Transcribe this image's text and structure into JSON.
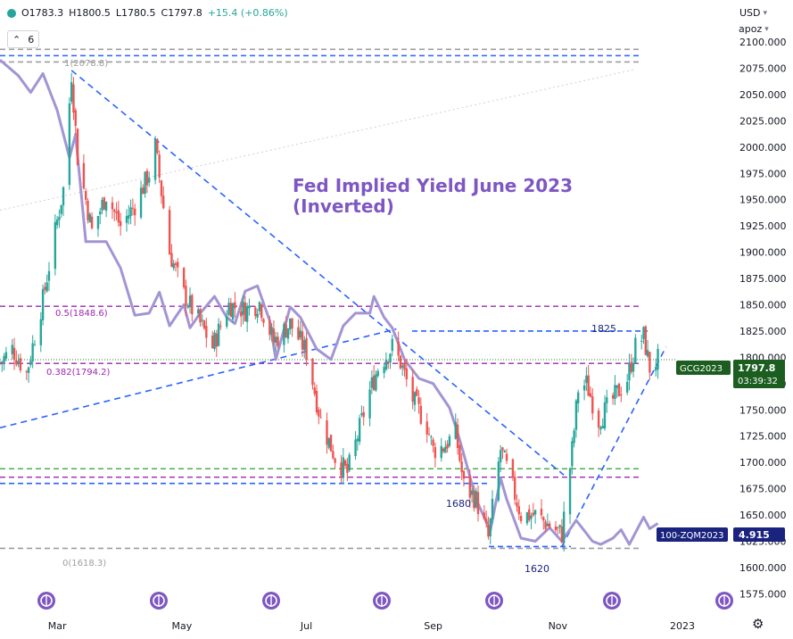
{
  "header": {
    "open": "O1783.3",
    "high": "H1800.5",
    "low": "L1780.5",
    "close": "C1797.8",
    "change": "+15.4 (+0.86%)",
    "layers_count": "6",
    "currency": "USD",
    "scale_mode": "apoz"
  },
  "annotation": {
    "title_line1": "Fed Implied Yield June 2023",
    "title_line2": "(Inverted)"
  },
  "fib_labels": {
    "level_1": "1(2078.8)",
    "level_05": "0.5(1848.6)",
    "level_0382": "0.382(1794.2)",
    "level_0": "0(1618.3)"
  },
  "level_labels": {
    "l1825": "1825",
    "l1680": "1680",
    "l1620": "1620"
  },
  "badges": {
    "gold_symbol": "GCG2023",
    "gold_price": "1797.8",
    "gold_countdown": "03:39:32",
    "fed_symbol": "100-ZQM2023",
    "fed_value": "4.915"
  },
  "colors": {
    "up": "#26a69a",
    "down": "#ef5350",
    "ma_purple": "#a394d4",
    "trend_blue": "#2962ff",
    "fib_purple": "#9c27b0",
    "green_line": "#4caf50",
    "gray_dash": "#9e9e9e",
    "title_purple": "#7e57c2",
    "badge_green": "#1b5e20",
    "badge_navy": "#1a237e",
    "event_icon": "#7e57c2"
  },
  "event_icons": [
    "dollar-event-icon",
    "dollar-event-icon",
    "dollar-event-icon",
    "dollar-event-icon",
    "dollar-event-icon",
    "dollar-event-icon",
    "dollar-event-icon"
  ],
  "chart_data": {
    "type": "candlestick",
    "title": "",
    "symbol": "GCG2023",
    "ylim": [
      1566,
      2106
    ],
    "y_ticks": [
      1575,
      1600,
      1625,
      1650,
      1675,
      1700,
      1725,
      1750,
      1775,
      1800,
      1825,
      1850,
      1875,
      1900,
      1925,
      1950,
      1975,
      2000,
      2025,
      2050,
      2075,
      2100
    ],
    "x_ticks": [
      "Mar",
      "May",
      "Jul",
      "Sep",
      "Nov",
      "2023"
    ],
    "x_tick_dates": [
      "2022-03-01",
      "2022-05-01",
      "2022-07-01",
      "2022-09-01",
      "2022-11-01",
      "2023-01-01"
    ],
    "x_range": [
      "2022-02-01",
      "2023-01-25"
    ],
    "price_path": [
      [
        "2022-02-01",
        1795
      ],
      [
        "2022-02-07",
        1808
      ],
      [
        "2022-02-14",
        1785
      ],
      [
        "2022-02-22",
        1855
      ],
      [
        "2022-03-01",
        1930
      ],
      [
        "2022-03-04",
        1960
      ],
      [
        "2022-03-08",
        2070
      ],
      [
        "2022-03-11",
        1990
      ],
      [
        "2022-03-18",
        1920
      ],
      [
        "2022-03-25",
        1955
      ],
      [
        "2022-04-01",
        1925
      ],
      [
        "2022-04-08",
        1945
      ],
      [
        "2022-04-15",
        1975
      ],
      [
        "2022-04-18",
        2000
      ],
      [
        "2022-04-25",
        1900
      ],
      [
        "2022-05-02",
        1860
      ],
      [
        "2022-05-12",
        1825
      ],
      [
        "2022-05-16",
        1810
      ],
      [
        "2022-05-24",
        1850
      ],
      [
        "2022-06-01",
        1845
      ],
      [
        "2022-06-08",
        1852
      ],
      [
        "2022-06-15",
        1815
      ],
      [
        "2022-06-23",
        1832
      ],
      [
        "2022-07-01",
        1805
      ],
      [
        "2022-07-08",
        1740
      ],
      [
        "2022-07-15",
        1705
      ],
      [
        "2022-07-21",
        1690
      ],
      [
        "2022-07-25",
        1718
      ],
      [
        "2022-08-01",
        1768
      ],
      [
        "2022-08-05",
        1790
      ],
      [
        "2022-08-12",
        1810
      ],
      [
        "2022-08-16",
        1795
      ],
      [
        "2022-08-22",
        1760
      ],
      [
        "2022-08-29",
        1735
      ],
      [
        "2022-09-01",
        1712
      ],
      [
        "2022-09-06",
        1715
      ],
      [
        "2022-09-12",
        1728
      ],
      [
        "2022-09-16",
        1678
      ],
      [
        "2022-09-22",
        1665
      ],
      [
        "2022-09-28",
        1628
      ],
      [
        "2022-10-04",
        1712
      ],
      [
        "2022-10-07",
        1695
      ],
      [
        "2022-10-14",
        1650
      ],
      [
        "2022-10-21",
        1650
      ],
      [
        "2022-10-28",
        1640
      ],
      [
        "2022-11-03",
        1632
      ],
      [
        "2022-11-08",
        1712
      ],
      [
        "2022-11-11",
        1770
      ],
      [
        "2022-11-15",
        1775
      ],
      [
        "2022-11-21",
        1740
      ],
      [
        "2022-11-28",
        1760
      ],
      [
        "2022-12-05",
        1780
      ],
      [
        "2022-12-09",
        1810
      ],
      [
        "2022-12-13",
        1820
      ],
      [
        "2022-12-16",
        1790
      ],
      [
        "2022-12-20",
        1797.8
      ]
    ],
    "fed_implied_yield_inverted": [
      [
        "2022-02-01",
        2083
      ],
      [
        "2022-02-10",
        2068
      ],
      [
        "2022-02-16",
        2052
      ],
      [
        "2022-02-22",
        2070
      ],
      [
        "2022-03-01",
        2035
      ],
      [
        "2022-03-07",
        1990
      ],
      [
        "2022-03-10",
        2012
      ],
      [
        "2022-03-15",
        1910
      ],
      [
        "2022-03-25",
        1910
      ],
      [
        "2022-04-01",
        1885
      ],
      [
        "2022-04-08",
        1840
      ],
      [
        "2022-04-15",
        1842
      ],
      [
        "2022-04-20",
        1862
      ],
      [
        "2022-04-25",
        1830
      ],
      [
        "2022-05-02",
        1850
      ],
      [
        "2022-05-05",
        1828
      ],
      [
        "2022-05-10",
        1842
      ],
      [
        "2022-05-17",
        1858
      ],
      [
        "2022-05-23",
        1838
      ],
      [
        "2022-05-27",
        1832
      ],
      [
        "2022-06-01",
        1863
      ],
      [
        "2022-06-07",
        1868
      ],
      [
        "2022-06-13",
        1835
      ],
      [
        "2022-06-16",
        1798
      ],
      [
        "2022-06-23",
        1848
      ],
      [
        "2022-06-28",
        1838
      ],
      [
        "2022-07-06",
        1808
      ],
      [
        "2022-07-13",
        1798
      ],
      [
        "2022-07-19",
        1830
      ],
      [
        "2022-07-25",
        1842
      ],
      [
        "2022-08-01",
        1842
      ],
      [
        "2022-08-03",
        1858
      ],
      [
        "2022-08-08",
        1838
      ],
      [
        "2022-08-12",
        1828
      ],
      [
        "2022-08-18",
        1798
      ],
      [
        "2022-08-25",
        1780
      ],
      [
        "2022-09-01",
        1775
      ],
      [
        "2022-09-09",
        1752
      ],
      [
        "2022-09-13",
        1728
      ],
      [
        "2022-09-16",
        1708
      ],
      [
        "2022-09-22",
        1665
      ],
      [
        "2022-09-29",
        1635
      ],
      [
        "2022-10-04",
        1685
      ],
      [
        "2022-10-07",
        1665
      ],
      [
        "2022-10-14",
        1628
      ],
      [
        "2022-10-21",
        1625
      ],
      [
        "2022-10-28",
        1638
      ],
      [
        "2022-11-03",
        1625
      ],
      [
        "2022-11-10",
        1645
      ],
      [
        "2022-11-14",
        1635
      ],
      [
        "2022-11-18",
        1625
      ],
      [
        "2022-11-22",
        1622
      ],
      [
        "2022-11-28",
        1628
      ],
      [
        "2022-12-02",
        1636
      ],
      [
        "2022-12-06",
        1622
      ],
      [
        "2022-12-13",
        1648
      ],
      [
        "2022-12-16",
        1637
      ],
      [
        "2022-12-20",
        1642
      ]
    ],
    "horizontal_levels": [
      {
        "price": 2093,
        "style": "gray-dashed"
      },
      {
        "price": 2087,
        "style": "blue-dashed"
      },
      {
        "price": 2081,
        "style": "gray-dashed"
      },
      {
        "price": 1848.6,
        "style": "purple-dashed",
        "label": "0.5(1848.6)"
      },
      {
        "price": 1825,
        "style": "blue-dashed",
        "label": "1825"
      },
      {
        "price": 1794.2,
        "style": "purple-dashed",
        "label": "0.382(1794.2)"
      },
      {
        "price": 1797.8,
        "style": "dotted-current"
      },
      {
        "price": 1694,
        "style": "green-dashed"
      },
      {
        "price": 1686,
        "style": "purple-dashed"
      },
      {
        "price": 1680,
        "style": "blue-dashed",
        "label": "1680"
      },
      {
        "price": 1620,
        "style": "blue-dashed",
        "label": "1620"
      },
      {
        "price": 1618.3,
        "style": "gray-dashed",
        "label": "0(1618.3)"
      }
    ],
    "trendlines": [
      {
        "name": "downtrend",
        "from": [
          "2022-03-08",
          2073
        ],
        "to": [
          "2022-11-04",
          1688
        ]
      },
      {
        "name": "rising support",
        "from": [
          "2022-02-01",
          1733
        ],
        "to": [
          "2022-08-14",
          1827
        ]
      },
      {
        "name": "uptrend",
        "from": [
          "2022-11-03",
          1620
        ],
        "to": [
          "2022-12-24",
          1810
        ]
      }
    ]
  }
}
